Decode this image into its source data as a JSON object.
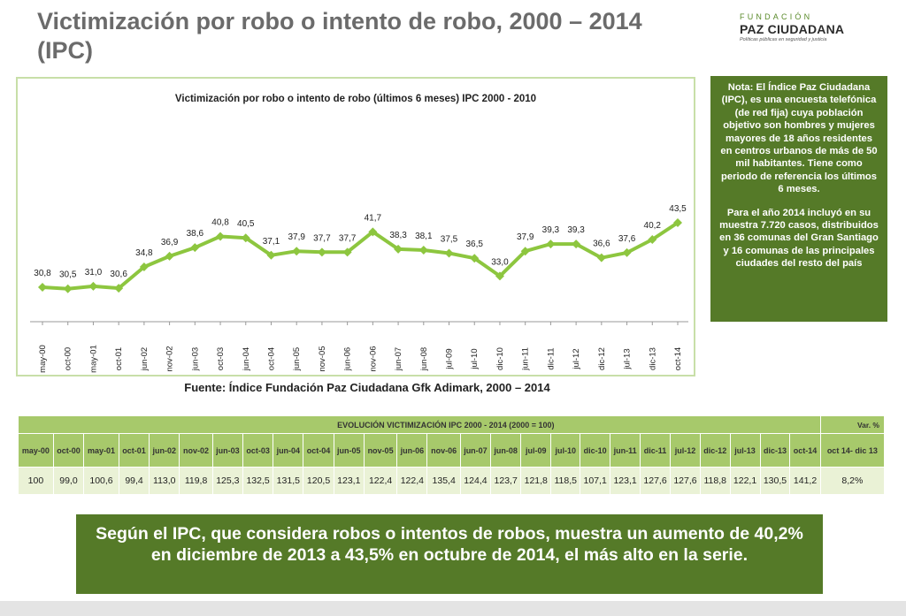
{
  "page": {
    "title": "Victimización por robo o intento de robo, 2000 – 2014 (IPC)",
    "source": "Fuente: Índice Fundación Paz Ciudadana Gfk Adimark, 2000 – 2014"
  },
  "logo": {
    "line1": "FUNDACIÓN",
    "line2": "PAZ CIUDADANA",
    "line3": "Políticas públicas en seguridad y justicia"
  },
  "note": {
    "paragraph1": "Nota: El Índice Paz Ciudadana (IPC), es una encuesta telefónica (de red fija) cuya población objetivo son hombres y mujeres mayores de 18 años residentes en centros urbanos de más de 50 mil habitantes. Tiene como periodo de referencia los últimos 6 meses.",
    "paragraph2": "Para el año 2014 incluyó en su muestra 7.720 casos, distribuidos en 36 comunas del Gran Santiago y 16 comunas de las principales ciudades del resto del país"
  },
  "chart_data": {
    "type": "line",
    "title": "Victimización por robo o intento de robo (últimos 6 meses) IPC 2000 - 2010",
    "categories": [
      "may-00",
      "oct-00",
      "may-01",
      "oct-01",
      "jun-02",
      "nov-02",
      "jun-03",
      "oct-03",
      "jun-04",
      "oct-04",
      "jun-05",
      "nov-05",
      "jun-06",
      "nov-06",
      "jun-07",
      "jun-08",
      "jul-09",
      "jul-10",
      "dic-10",
      "jun-11",
      "dic-11",
      "jul-12",
      "dic-12",
      "jul-13",
      "dic-13",
      "oct-14"
    ],
    "series": [
      {
        "values": [
          30.8,
          30.5,
          31.0,
          30.6,
          34.8,
          36.9,
          38.6,
          40.8,
          40.5,
          37.1,
          37.9,
          37.7,
          37.7,
          41.7,
          38.3,
          38.1,
          37.5,
          36.5,
          33.0,
          37.9,
          39.3,
          39.3,
          36.6,
          37.6,
          40.2,
          43.5
        ],
        "labels": [
          "30,8",
          "30,5",
          "31,0",
          "30,6",
          "34,8",
          "36,9",
          "38,6",
          "40,8",
          "40,5",
          "37,1",
          "37,9",
          "37,7",
          "37,7",
          "41,7",
          "38,3",
          "38,1",
          "37,5",
          "36,5",
          "33,0",
          "37,9",
          "39,3",
          "39,3",
          "36,6",
          "37,6",
          "40,2",
          "43,5"
        ]
      }
    ],
    "color": "#8dc63f",
    "grid": false,
    "legend": "none"
  },
  "table": {
    "header": "EVOLUCIÓN VICTIMIZACIÓN IPC 2000 - 2014 (2000 = 100)",
    "var_header": "Var. %",
    "columns": [
      "may-00",
      "oct-00",
      "may-01",
      "oct-01",
      "jun-02",
      "nov-02",
      "jun-03",
      "oct-03",
      "jun-04",
      "oct-04",
      "jun-05",
      "nov-05",
      "jun-06",
      "nov-06",
      "jun-07",
      "jun-08",
      "jul-09",
      "jul-10",
      "dic-10",
      "jun-11",
      "dic-11",
      "jul-12",
      "dic-12",
      "jul-13",
      "dic-13",
      "oct-14",
      "oct 14- dic 13"
    ],
    "values": [
      "100",
      "99,0",
      "100,6",
      "99,4",
      "113,0",
      "119,8",
      "125,3",
      "132,5",
      "131,5",
      "120,5",
      "123,1",
      "122,4",
      "122,4",
      "135,4",
      "124,4",
      "123,7",
      "121,8",
      "118,5",
      "107,1",
      "123,1",
      "127,6",
      "127,6",
      "118,8",
      "122,1",
      "130,5",
      "141,2",
      "8,2%"
    ]
  },
  "callout": {
    "text": "Según el IPC, que considera robos o intentos de robos, muestra un aumento de 40,2% en diciembre de 2013 a 43,5% en octubre de 2014, el más alto en la serie."
  }
}
